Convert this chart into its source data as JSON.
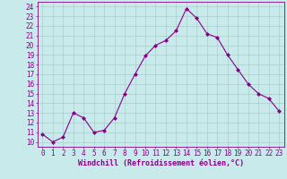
{
  "x": [
    0,
    1,
    2,
    3,
    4,
    5,
    6,
    7,
    8,
    9,
    10,
    11,
    12,
    13,
    14,
    15,
    16,
    17,
    18,
    19,
    20,
    21,
    22,
    23
  ],
  "y": [
    10.8,
    10.0,
    10.5,
    13.0,
    12.5,
    11.0,
    11.2,
    12.5,
    15.0,
    17.0,
    18.9,
    20.0,
    20.5,
    21.5,
    23.8,
    22.8,
    21.2,
    20.8,
    19.0,
    17.5,
    16.0,
    15.0,
    14.5,
    13.2
  ],
  "line_color": "#880088",
  "marker": "D",
  "marker_size": 2.0,
  "bg_color": "#c8eaea",
  "grid_color": "#aacccc",
  "ylabel_values": [
    10,
    11,
    12,
    13,
    14,
    15,
    16,
    17,
    18,
    19,
    20,
    21,
    22,
    23,
    24
  ],
  "xlabel": "Windchill (Refroidissement éolien,°C)",
  "ylim": [
    9.5,
    24.5
  ],
  "xlim": [
    -0.5,
    23.5
  ],
  "tick_label_color": "#880088",
  "axis_color": "#880088",
  "tick_fontsize": 5.5,
  "xlabel_fontsize": 6.0
}
